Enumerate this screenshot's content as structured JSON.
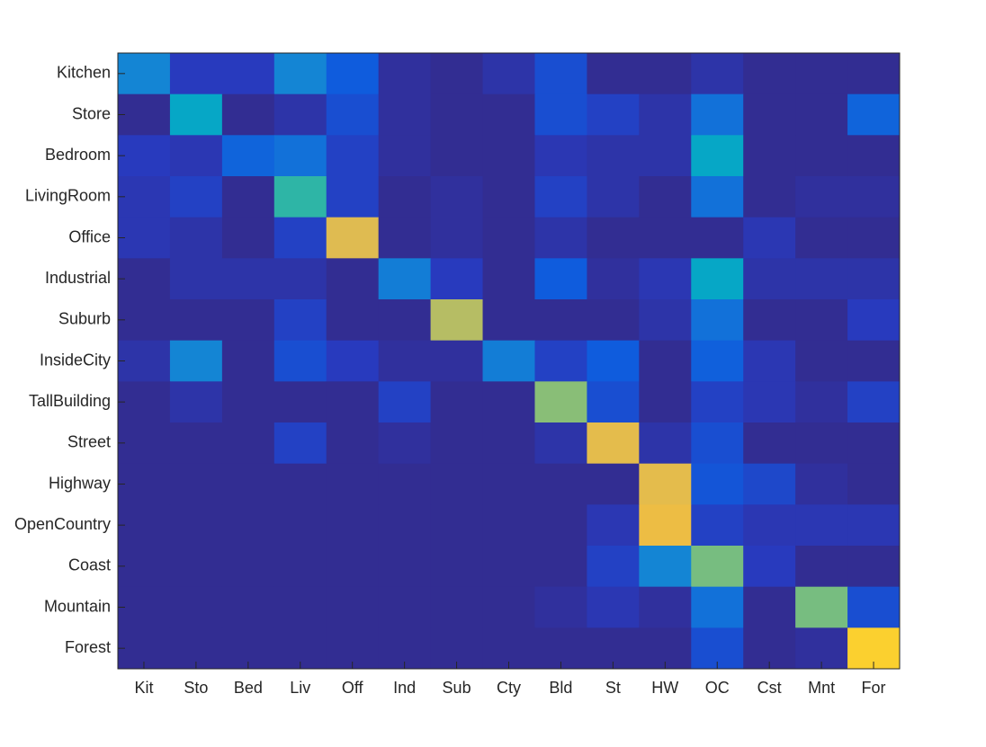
{
  "chart_data": {
    "type": "heatmap",
    "colormap": "parula",
    "zlim": [
      0,
      1
    ],
    "x_categories": [
      "Kit",
      "Sto",
      "Bed",
      "Liv",
      "Off",
      "Ind",
      "Sub",
      "Cty",
      "Bld",
      "St",
      "HW",
      "OC",
      "Cst",
      "Mnt",
      "For"
    ],
    "y_categories": [
      "Kitchen",
      "Store",
      "Bedroom",
      "LivingRoom",
      "Office",
      "Industrial",
      "Suburb",
      "InsideCity",
      "TallBuilding",
      "Street",
      "Highway",
      "OpenCountry",
      "Coast",
      "Mountain",
      "Forest"
    ],
    "z": [
      [
        0.2,
        0.05,
        0.05,
        0.2,
        0.1,
        0.02,
        0.01,
        0.03,
        0.08,
        0.01,
        0.01,
        0.03,
        0.01,
        0.01,
        0.01
      ],
      [
        0.01,
        0.3,
        0.01,
        0.03,
        0.08,
        0.02,
        0.01,
        0.01,
        0.08,
        0.06,
        0.03,
        0.15,
        0.01,
        0.01,
        0.12
      ],
      [
        0.05,
        0.04,
        0.12,
        0.15,
        0.06,
        0.02,
        0.01,
        0.01,
        0.04,
        0.03,
        0.03,
        0.3,
        0.01,
        0.01,
        0.01
      ],
      [
        0.04,
        0.06,
        0.01,
        0.38,
        0.06,
        0.01,
        0.02,
        0.01,
        0.06,
        0.03,
        0.01,
        0.15,
        0.01,
        0.02,
        0.02
      ],
      [
        0.04,
        0.03,
        0.01,
        0.06,
        0.62,
        0.01,
        0.02,
        0.01,
        0.03,
        0.01,
        0.01,
        0.01,
        0.04,
        0.01,
        0.01
      ],
      [
        0.01,
        0.03,
        0.03,
        0.03,
        0.01,
        0.18,
        0.05,
        0.01,
        0.1,
        0.02,
        0.04,
        0.3,
        0.03,
        0.03,
        0.03
      ],
      [
        0.01,
        0.01,
        0.01,
        0.06,
        0.01,
        0.01,
        0.55,
        0.01,
        0.01,
        0.01,
        0.03,
        0.15,
        0.01,
        0.01,
        0.05
      ],
      [
        0.03,
        0.2,
        0.01,
        0.08,
        0.05,
        0.02,
        0.02,
        0.18,
        0.06,
        0.1,
        0.01,
        0.11,
        0.04,
        0.01,
        0.01
      ],
      [
        0.01,
        0.03,
        0.01,
        0.01,
        0.01,
        0.06,
        0.01,
        0.01,
        0.49,
        0.08,
        0.01,
        0.06,
        0.04,
        0.02,
        0.06
      ],
      [
        0.01,
        0.01,
        0.01,
        0.06,
        0.01,
        0.02,
        0.01,
        0.01,
        0.03,
        0.64,
        0.03,
        0.08,
        0.01,
        0.01,
        0.01
      ],
      [
        0.01,
        0.01,
        0.01,
        0.01,
        0.01,
        0.01,
        0.01,
        0.01,
        0.01,
        0.01,
        0.64,
        0.09,
        0.07,
        0.02,
        0.01
      ],
      [
        0.01,
        0.01,
        0.01,
        0.01,
        0.01,
        0.01,
        0.01,
        0.01,
        0.01,
        0.04,
        0.67,
        0.06,
        0.04,
        0.04,
        0.04
      ],
      [
        0.01,
        0.01,
        0.01,
        0.01,
        0.01,
        0.01,
        0.01,
        0.01,
        0.01,
        0.06,
        0.2,
        0.47,
        0.05,
        0.01,
        0.01
      ],
      [
        0.01,
        0.01,
        0.01,
        0.01,
        0.01,
        0.01,
        0.01,
        0.01,
        0.02,
        0.04,
        0.02,
        0.15,
        0.01,
        0.47,
        0.08
      ],
      [
        0.01,
        0.01,
        0.01,
        0.01,
        0.01,
        0.01,
        0.01,
        0.01,
        0.01,
        0.01,
        0.01,
        0.08,
        0.01,
        0.02,
        0.78
      ]
    ]
  }
}
